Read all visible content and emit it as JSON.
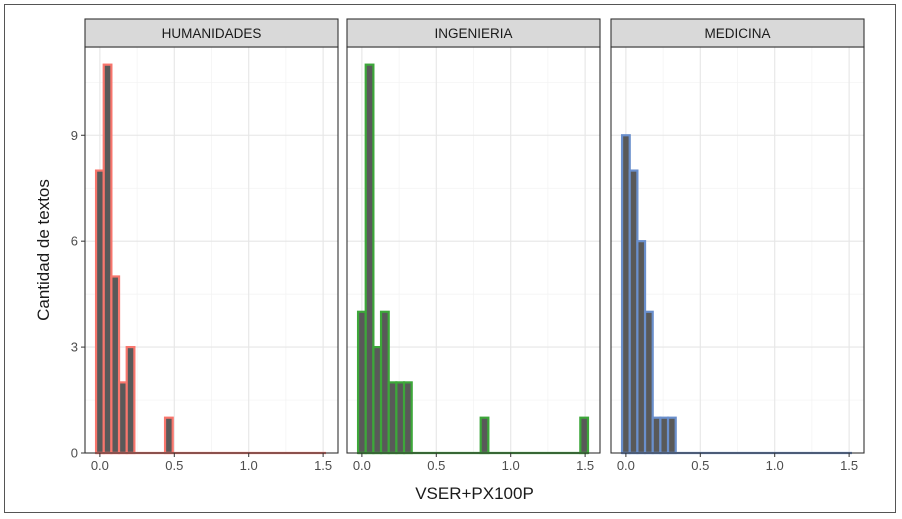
{
  "chart_data": {
    "type": "bar",
    "subtype": "faceted-histogram",
    "xlabel": "VSER+PX100P",
    "ylabel": "Cantidad de textos",
    "xlim": [
      -0.1,
      1.6
    ],
    "ylim": [
      0,
      11.5
    ],
    "x_ticks": [
      0.0,
      0.5,
      1.0,
      1.5
    ],
    "x_tick_labels": [
      "0.0",
      "0.5",
      "1.0",
      "1.5"
    ],
    "y_ticks": [
      0,
      3,
      6,
      9
    ],
    "y_tick_labels": [
      "0",
      "3",
      "6",
      "9"
    ],
    "bin_width": 0.0515,
    "bin_start": -0.0257,
    "grid": true,
    "bar_fill": "#595959",
    "facets": [
      {
        "name": "HUMANIDADES",
        "color": "#F8766D",
        "counts": [
          8,
          11,
          5,
          2,
          3,
          0,
          0,
          0,
          0,
          1,
          0,
          0,
          0,
          0,
          0,
          0,
          0,
          0,
          0,
          0,
          0,
          0,
          0,
          0,
          0,
          0,
          0,
          0,
          0,
          0
        ]
      },
      {
        "name": "INGENIERIA",
        "color": "#3DA73A",
        "counts": [
          4,
          11,
          3,
          4,
          2,
          2,
          2,
          0,
          0,
          0,
          0,
          0,
          0,
          0,
          0,
          0,
          1,
          0,
          0,
          0,
          0,
          0,
          0,
          0,
          0,
          0,
          0,
          0,
          0,
          1
        ]
      },
      {
        "name": "MEDICINA",
        "color": "#6A8FCC",
        "counts": [
          9,
          8,
          6,
          4,
          1,
          1,
          1,
          0,
          0,
          0,
          0,
          0,
          0,
          0,
          0,
          0,
          0,
          0,
          0,
          0,
          0,
          0,
          0,
          0,
          0,
          0,
          0,
          0,
          0,
          0
        ]
      }
    ]
  }
}
